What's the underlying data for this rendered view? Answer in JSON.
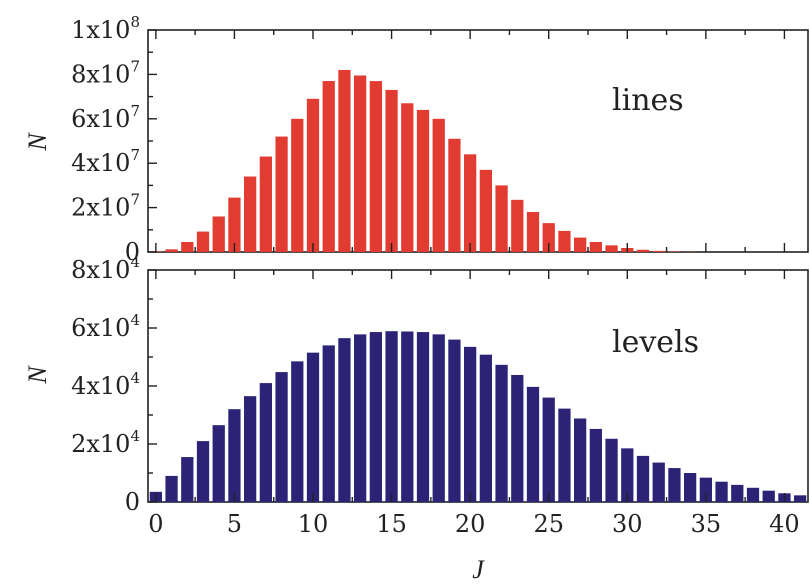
{
  "chart_data": [
    {
      "type": "bar",
      "panel": "top",
      "label": "lines",
      "ylabel": "N",
      "color": "#e23b31",
      "ylim": [
        0,
        100000000
      ],
      "yticks": [
        {
          "value": 0,
          "text": "0",
          "exp": ""
        },
        {
          "value": 20000000,
          "text": "2x10",
          "exp": "7"
        },
        {
          "value": 40000000,
          "text": "4x10",
          "exp": "7"
        },
        {
          "value": 60000000,
          "text": "6x10",
          "exp": "7"
        },
        {
          "value": 80000000,
          "text": "8x10",
          "exp": "7"
        },
        {
          "value": 100000000,
          "text": "1x10",
          "exp": "8"
        }
      ],
      "x": [
        0,
        1,
        2,
        3,
        4,
        5,
        6,
        7,
        8,
        9,
        10,
        11,
        12,
        13,
        14,
        15,
        16,
        17,
        18,
        19,
        20,
        21,
        22,
        23,
        24,
        25,
        26,
        27,
        28,
        29,
        30,
        31,
        32,
        33,
        34,
        35,
        36,
        37,
        38,
        39,
        40,
        41
      ],
      "values": [
        300000,
        1200000,
        4500000,
        9200000,
        16000000,
        24500000,
        34000000,
        43000000,
        52000000,
        60000000,
        69000000,
        77000000,
        82000000,
        79500000,
        77000000,
        73000000,
        67000000,
        64000000,
        60000000,
        51000000,
        44000000,
        37000000,
        30000000,
        23500000,
        18000000,
        13000000,
        9500000,
        6500000,
        4500000,
        3000000,
        1800000,
        1000000,
        500000,
        200000,
        100000,
        0,
        0,
        0,
        0,
        0,
        0,
        0
      ]
    },
    {
      "type": "bar",
      "panel": "bottom",
      "label": "levels",
      "ylabel": "N",
      "xlabel": "J",
      "color": "#2c2377",
      "ylim": [
        0,
        80000
      ],
      "xlim": [
        -0.5,
        41.5
      ],
      "yticks": [
        {
          "value": 0,
          "text": "0",
          "exp": ""
        },
        {
          "value": 20000,
          "text": "2x10",
          "exp": "4"
        },
        {
          "value": 40000,
          "text": "4x10",
          "exp": "4"
        },
        {
          "value": 60000,
          "text": "6x10",
          "exp": "4"
        },
        {
          "value": 80000,
          "text": "8x10",
          "exp": "4"
        }
      ],
      "xticks": [
        {
          "value": 0,
          "text": "0"
        },
        {
          "value": 5,
          "text": "5"
        },
        {
          "value": 10,
          "text": "10"
        },
        {
          "value": 15,
          "text": "15"
        },
        {
          "value": 20,
          "text": "20"
        },
        {
          "value": 25,
          "text": "25"
        },
        {
          "value": 30,
          "text": "30"
        },
        {
          "value": 35,
          "text": "35"
        },
        {
          "value": 40,
          "text": "40"
        }
      ],
      "x": [
        0,
        1,
        2,
        3,
        4,
        5,
        6,
        7,
        8,
        9,
        10,
        11,
        12,
        13,
        14,
        15,
        16,
        17,
        18,
        19,
        20,
        21,
        22,
        23,
        24,
        25,
        26,
        27,
        28,
        29,
        30,
        31,
        32,
        33,
        34,
        35,
        36,
        37,
        38,
        39,
        40,
        41
      ],
      "values": [
        3500,
        9000,
        15500,
        21000,
        26500,
        32000,
        36500,
        41000,
        44800,
        48500,
        51500,
        54000,
        56500,
        57800,
        58600,
        58900,
        58800,
        58600,
        57800,
        56000,
        53500,
        50800,
        47300,
        43800,
        39700,
        36000,
        32200,
        28800,
        25200,
        21800,
        18500,
        15900,
        13600,
        11700,
        10000,
        8400,
        7000,
        5900,
        4900,
        3900,
        3000,
        2300
      ]
    }
  ]
}
